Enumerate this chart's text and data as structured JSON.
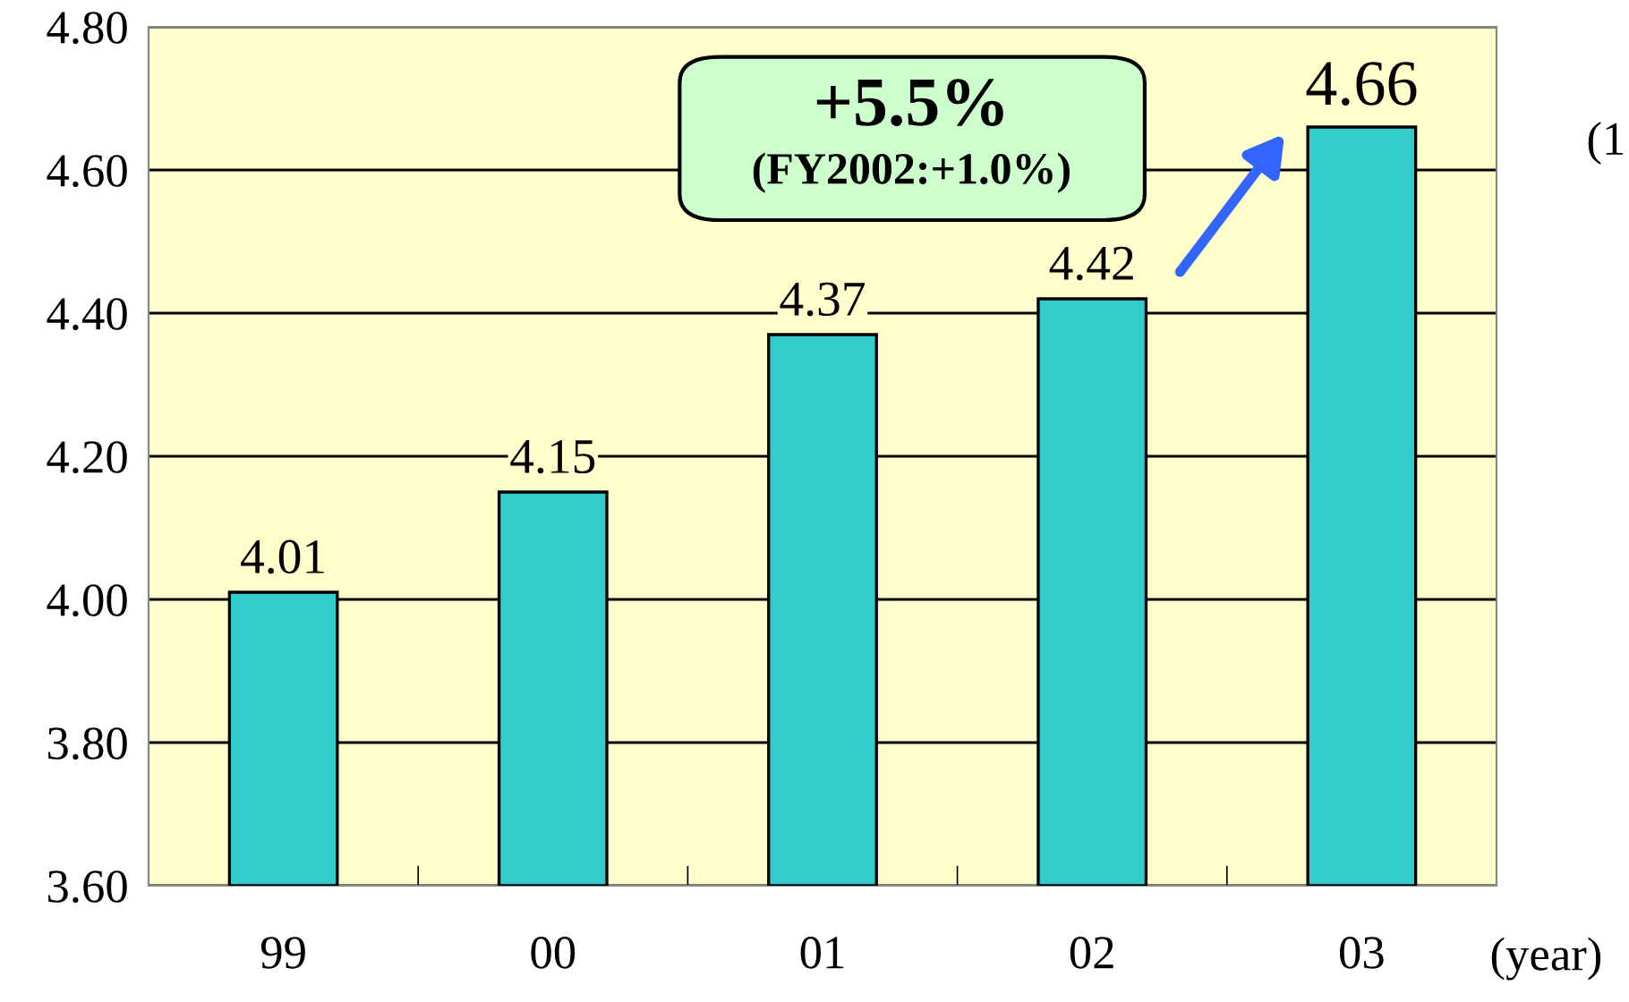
{
  "chart_data": {
    "type": "bar",
    "categories": [
      "99",
      "00",
      "01",
      "02",
      "03"
    ],
    "values": [
      4.01,
      4.15,
      4.37,
      4.42,
      4.66
    ],
    "color": "#33cccc",
    "ylim": [
      3.6,
      4.8
    ],
    "yticks": [
      {
        "value": 3.6,
        "label": "3.60"
      },
      {
        "value": 3.8,
        "label": "3.80"
      },
      {
        "value": 4.0,
        "label": "4.00"
      },
      {
        "value": 4.2,
        "label": "4.20"
      },
      {
        "value": 4.4,
        "label": "4.40"
      },
      {
        "value": 4.6,
        "label": "4.60"
      },
      {
        "value": 4.8,
        "label": "4.80"
      }
    ],
    "grid": "y",
    "data_labels": true,
    "xlabel": "(year)",
    "annotations": [
      "+5.5%",
      "(FY2002:+1.0%)",
      "(1"
    ]
  }
}
